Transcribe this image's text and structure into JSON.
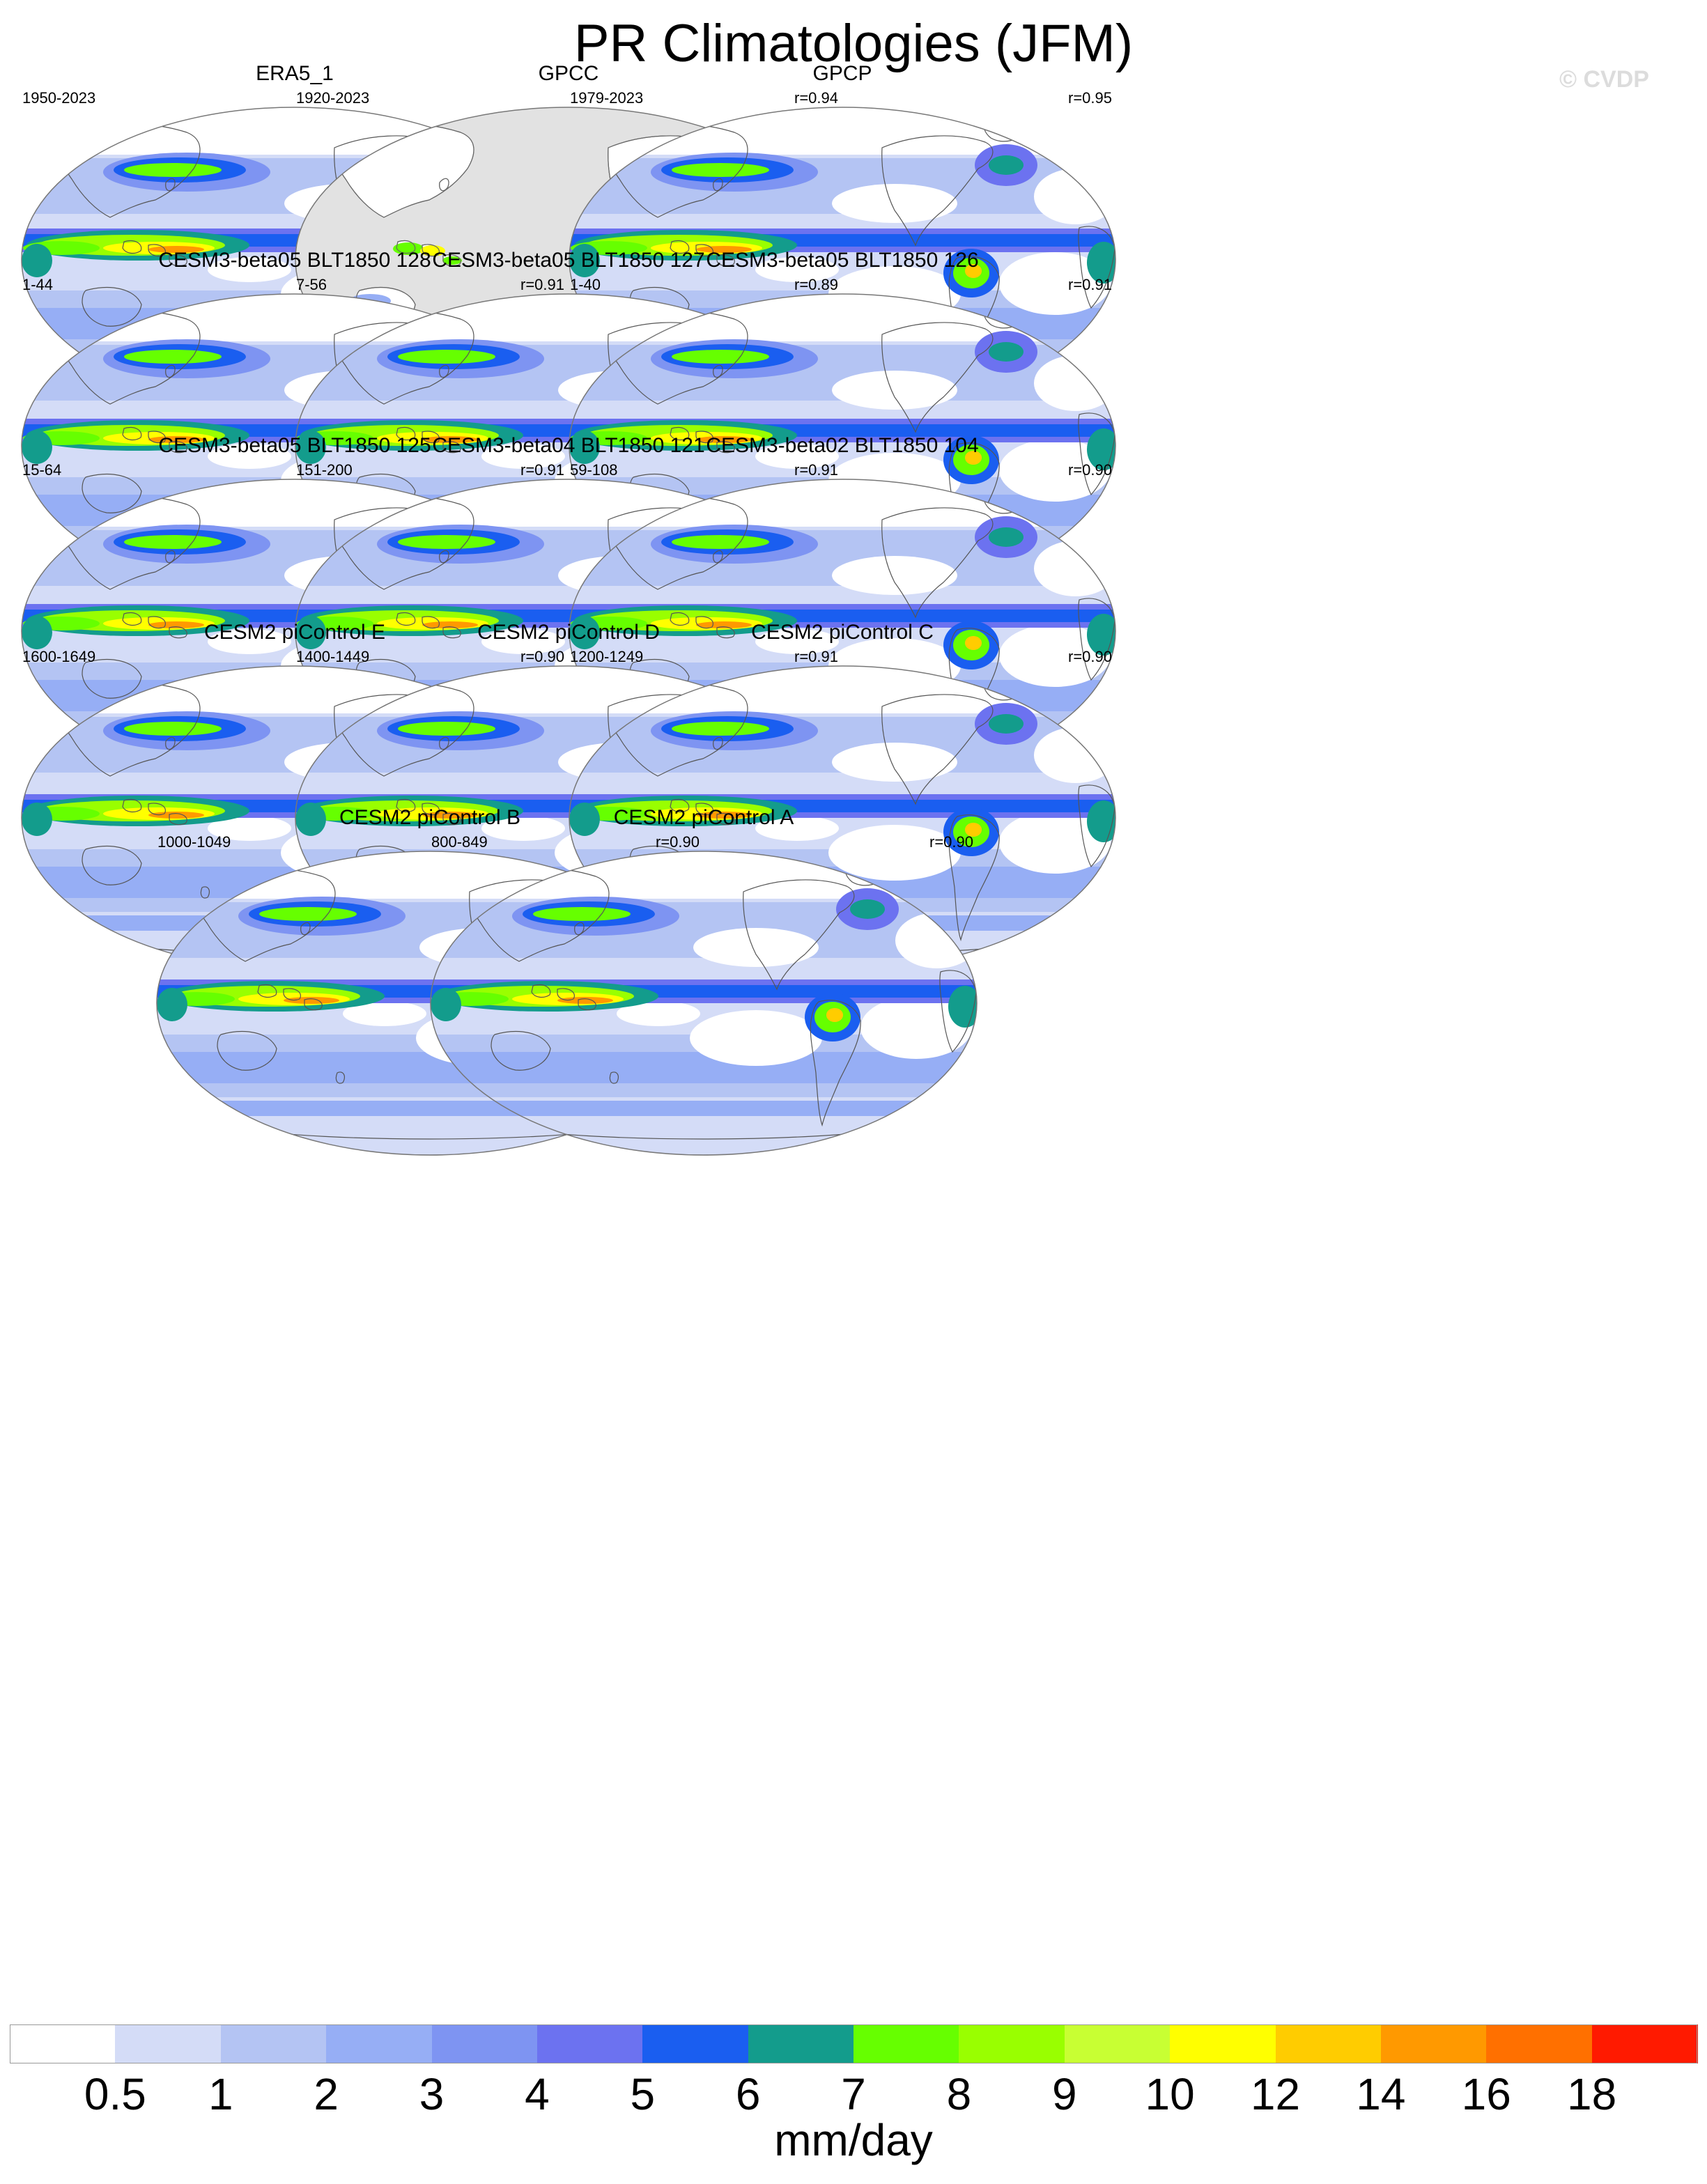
{
  "title": "PR Climatologies (JFM)",
  "watermark": "© CVDP",
  "panels": [
    {
      "title": "ERA5_1",
      "years": "1950-2023",
      "corr": "",
      "style": "obs"
    },
    {
      "title": "GPCC",
      "years": "1920-2023",
      "corr": "r=0.94",
      "style": "land"
    },
    {
      "title": "GPCP",
      "years": "1979-2023",
      "corr": "r=0.95",
      "style": "obs"
    },
    {
      "title": "CESM3-beta05 BLT1850 128",
      "years": "1-44",
      "corr": "r=0.91",
      "style": "model3"
    },
    {
      "title": "CESM3-beta05 BLT1850 127",
      "years": "7-56",
      "corr": "r=0.89",
      "style": "model3"
    },
    {
      "title": "CESM3-beta05 BLT1850 126",
      "years": "1-40",
      "corr": "r=0.91",
      "style": "model3"
    },
    {
      "title": "CESM3-beta05 BLT1850 125",
      "years": "15-64",
      "corr": "r=0.91",
      "style": "model3"
    },
    {
      "title": "CESM3-beta04 BLT1850 121",
      "years": "151-200",
      "corr": "r=0.91",
      "style": "model3"
    },
    {
      "title": "CESM3-beta02 BLT1850 104",
      "years": "59-108",
      "corr": "r=0.90",
      "style": "model3"
    },
    {
      "title": "CESM2 piControl E",
      "years": "1600-1649",
      "corr": "r=0.90",
      "style": "model2"
    },
    {
      "title": "CESM2 piControl D",
      "years": "1400-1449",
      "corr": "r=0.91",
      "style": "model2"
    },
    {
      "title": "CESM2 piControl C",
      "years": "1200-1249",
      "corr": "r=0.90",
      "style": "model2"
    },
    {
      "title": "CESM2 piControl B",
      "years": "1000-1049",
      "corr": "r=0.90",
      "style": "model2"
    },
    {
      "title": "CESM2 piControl A",
      "years": "800-849",
      "corr": "r=0.90",
      "style": "model2"
    }
  ],
  "colorbar": {
    "units": "mm/day",
    "colors": [
      "#ffffff",
      "#d4dcf7",
      "#b4c4f3",
      "#96aef5",
      "#7e94f2",
      "#6c72f0",
      "#1a5ef0",
      "#139c8c",
      "#66ff00",
      "#99ff00",
      "#c8ff33",
      "#ffff00",
      "#ffcc00",
      "#ff9900",
      "#ff7000",
      "#ff1a00"
    ],
    "labels": [
      "0.5",
      "1",
      "2",
      "3",
      "4",
      "5",
      "6",
      "7",
      "8",
      "9",
      "10",
      "12",
      "14",
      "16",
      "18"
    ]
  }
}
